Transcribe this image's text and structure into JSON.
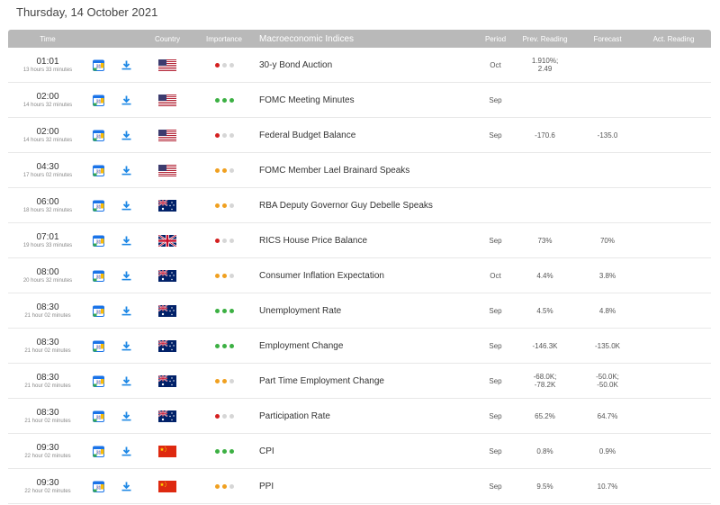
{
  "page": {
    "date": "Thursday, 14 October 2021"
  },
  "headers": {
    "time": "Time",
    "country": "Country",
    "importance": "Importance",
    "indicator": "Macroeconomic Indices",
    "period": "Period",
    "prev": "Prev. Reading",
    "forecast": "Forecast",
    "actual": "Act. Reading"
  },
  "colors": {
    "high": "#3cb043",
    "medium": "#f0a020",
    "low": "#d42020",
    "inactive": "#d6d6d6",
    "header_bg": "#b9b9b9"
  },
  "events": [
    {
      "time": "01:01",
      "remaining": "13 hours 33 minutes",
      "country": "us",
      "importance": [
        "low",
        "inactive",
        "inactive"
      ],
      "indicator": "30-y Bond Auction",
      "period": "Oct",
      "prev": "1.910%;",
      "prev2": "2.49",
      "forecast": "",
      "forecast2": "",
      "actual": ""
    },
    {
      "time": "02:00",
      "remaining": "14 hours 32 minutes",
      "country": "us",
      "importance": [
        "high",
        "high",
        "high"
      ],
      "indicator": "FOMC Meeting Minutes",
      "period": "Sep",
      "prev": "",
      "prev2": "",
      "forecast": "",
      "forecast2": "",
      "actual": ""
    },
    {
      "time": "02:00",
      "remaining": "14 hours 32 minutes",
      "country": "us",
      "importance": [
        "low",
        "inactive",
        "inactive"
      ],
      "indicator": "Federal Budget Balance",
      "period": "Sep",
      "prev": "-170.6",
      "prev2": "",
      "forecast": "-135.0",
      "forecast2": "",
      "actual": ""
    },
    {
      "time": "04:30",
      "remaining": "17 hours 02 minutes",
      "country": "us",
      "importance": [
        "medium",
        "medium",
        "inactive"
      ],
      "indicator": "FOMC Member Lael Brainard Speaks",
      "period": "",
      "prev": "",
      "prev2": "",
      "forecast": "",
      "forecast2": "",
      "actual": ""
    },
    {
      "time": "06:00",
      "remaining": "18 hours 32 minutes",
      "country": "au",
      "importance": [
        "medium",
        "medium",
        "inactive"
      ],
      "indicator": "RBA Deputy Governor Guy Debelle Speaks",
      "period": "",
      "prev": "",
      "prev2": "",
      "forecast": "",
      "forecast2": "",
      "actual": ""
    },
    {
      "time": "07:01",
      "remaining": "19 hours 33 minutes",
      "country": "uk",
      "importance": [
        "low",
        "inactive",
        "inactive"
      ],
      "indicator": "RICS House Price Balance",
      "period": "Sep",
      "prev": "73%",
      "prev2": "",
      "forecast": "70%",
      "forecast2": "",
      "actual": ""
    },
    {
      "time": "08:00",
      "remaining": "20 hours 32 minutes",
      "country": "au",
      "importance": [
        "medium",
        "medium",
        "inactive"
      ],
      "indicator": "Consumer Inflation Expectation",
      "period": "Oct",
      "prev": "4.4%",
      "prev2": "",
      "forecast": "3.8%",
      "forecast2": "",
      "actual": ""
    },
    {
      "time": "08:30",
      "remaining": "21 hour 02 minutes",
      "country": "au",
      "importance": [
        "high",
        "high",
        "high"
      ],
      "indicator": "Unemployment Rate",
      "period": "Sep",
      "prev": "4.5%",
      "prev2": "",
      "forecast": "4.8%",
      "forecast2": "",
      "actual": ""
    },
    {
      "time": "08:30",
      "remaining": "21 hour 02 minutes",
      "country": "au",
      "importance": [
        "high",
        "high",
        "high"
      ],
      "indicator": "Employment Change",
      "period": "Sep",
      "prev": "-146.3K",
      "prev2": "",
      "forecast": "-135.0K",
      "forecast2": "",
      "actual": ""
    },
    {
      "time": "08:30",
      "remaining": "21 hour 02 minutes",
      "country": "au",
      "importance": [
        "medium",
        "medium",
        "inactive"
      ],
      "indicator": "Part Time Employment Change",
      "period": "Sep",
      "prev": "-68.0K;",
      "prev2": "-78.2K",
      "forecast": "-50.0K;",
      "forecast2": "-50.0K",
      "actual": ""
    },
    {
      "time": "08:30",
      "remaining": "21 hour 02 minutes",
      "country": "au",
      "importance": [
        "low",
        "inactive",
        "inactive"
      ],
      "indicator": "Participation Rate",
      "period": "Sep",
      "prev": "65.2%",
      "prev2": "",
      "forecast": "64.7%",
      "forecast2": "",
      "actual": ""
    },
    {
      "time": "09:30",
      "remaining": "22 hour 02 minutes",
      "country": "cn",
      "importance": [
        "high",
        "high",
        "high"
      ],
      "indicator": "CPI",
      "period": "Sep",
      "prev": "0.8%",
      "prev2": "",
      "forecast": "0.9%",
      "forecast2": "",
      "actual": ""
    },
    {
      "time": "09:30",
      "remaining": "22 hour 02 minutes",
      "country": "cn",
      "importance": [
        "medium",
        "medium",
        "inactive"
      ],
      "indicator": "PPI",
      "period": "Sep",
      "prev": "9.5%",
      "prev2": "",
      "forecast": "10.7%",
      "forecast2": "",
      "actual": ""
    }
  ]
}
